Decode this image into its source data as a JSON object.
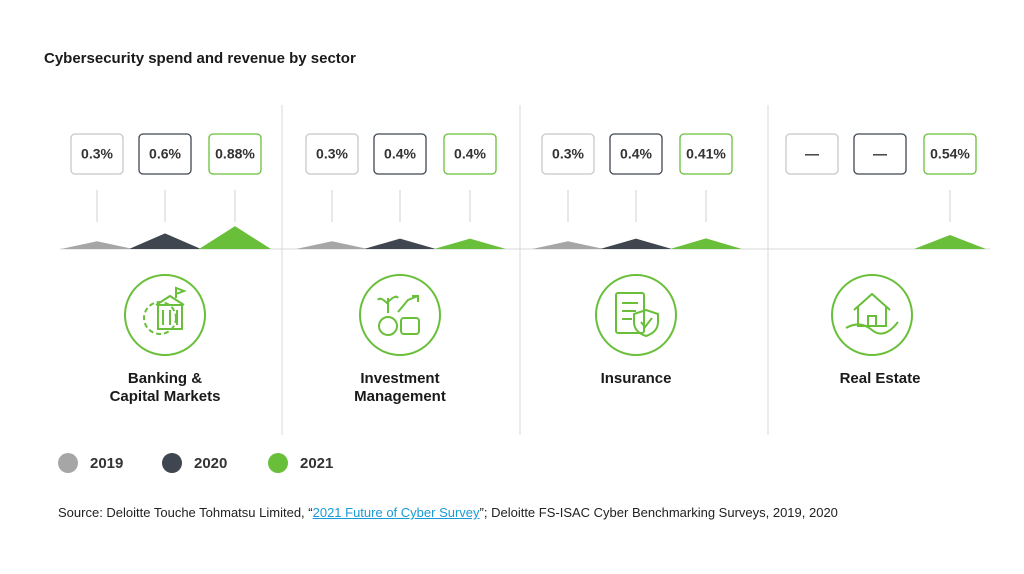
{
  "chart_data": {
    "type": "triangle",
    "title": "Cybersecurity spend and revenue by sector",
    "categories": [
      "Banking &\nCapital Markets",
      "Investment\nManagement",
      "Insurance",
      "Real Estate"
    ],
    "series": [
      {
        "name": "2019",
        "color": "#a6a6a6",
        "values": [
          0.3,
          0.3,
          0.3,
          null
        ],
        "value_labels": [
          "0.3%",
          "0.3%",
          "0.3%",
          "—"
        ]
      },
      {
        "name": "2020",
        "color": "#3f4650",
        "values": [
          0.6,
          0.4,
          0.4,
          null
        ],
        "value_labels": [
          "0.6%",
          "0.4%",
          "0.4%",
          "—"
        ]
      },
      {
        "name": "2021",
        "color": "#6abf3a",
        "values": [
          0.88,
          0.4,
          0.41,
          0.54
        ],
        "value_labels": [
          "0.88%",
          "0.4%",
          "0.41%",
          "0.54%"
        ]
      }
    ],
    "legend": "bottom-left"
  },
  "source": {
    "prefix": "Source: Deloitte Touche Tohmatsu Limited, “",
    "link": "2021 Future of Cyber Survey",
    "suffix": "”; Deloitte FS-ISAC Cyber Benchmarking Surveys, 2019, 2020"
  }
}
